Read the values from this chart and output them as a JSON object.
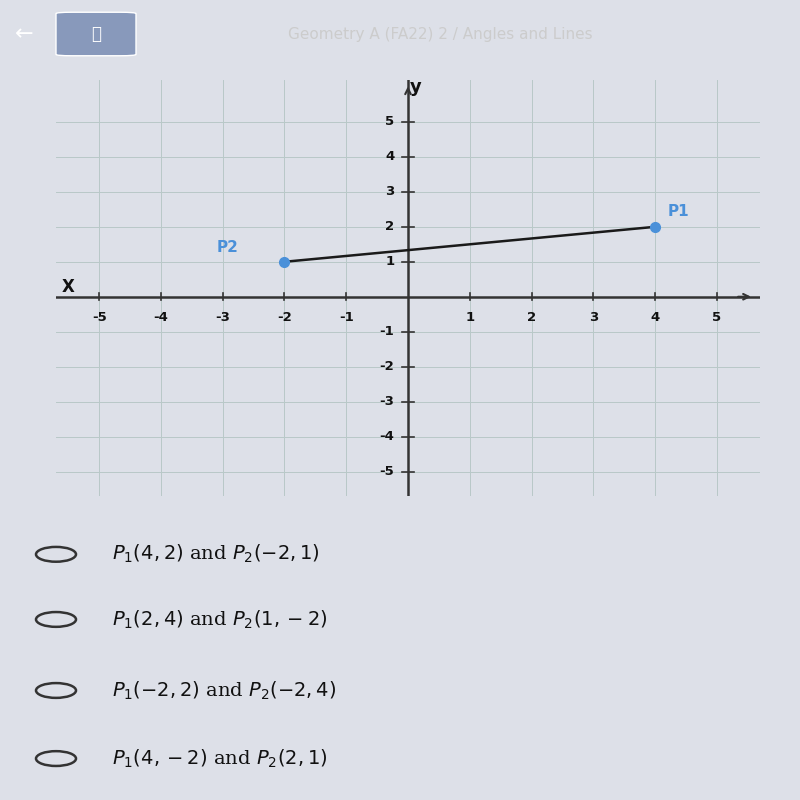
{
  "title": "Geometry A (FA22) 2 / Angles and Lines",
  "p1": [
    4,
    2
  ],
  "p2": [
    -2,
    1
  ],
  "p1_label": "P1",
  "p2_label": "P2",
  "point_color": "#4a90d9",
  "line_color": "#1a1a1a",
  "axis_color": "#000000",
  "grid_color": "#b8c8c8",
  "bg_color": "#dde8e8",
  "header_bg": "#3d4a5c",
  "choices": [
    "$P_1(4,2)$ and $P_2(-2, 1)$",
    "$P_1(2, 4)$ and $P_2(1, -2)$",
    "$P_1(-2,2)$ and $P_2(-2, 4)$",
    "$P_1(4,-2)$ and $P_2(2, 1)$"
  ],
  "choices_plain": [
    "P1(4,2) and P2(-2, 1)",
    "P1(2, 4) and P2(1, -2)",
    "P1(-2,2) and P2(-2, 4)",
    "P1(4,-2) and P2(2, 1)"
  ],
  "xlim": [
    -5.7,
    5.7
  ],
  "ylim": [
    -5.7,
    6.2
  ],
  "xticks": [
    -5,
    -4,
    -3,
    -2,
    -1,
    1,
    2,
    3,
    4,
    5
  ],
  "yticks": [
    -5,
    -4,
    -3,
    -2,
    -1,
    1,
    2,
    3,
    4,
    5
  ]
}
